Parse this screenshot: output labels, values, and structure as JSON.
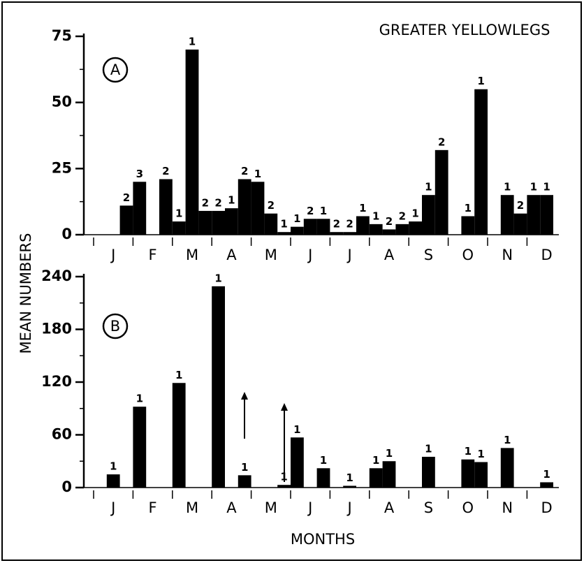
{
  "chart_data": [
    {
      "type": "bar",
      "title": "GREATER YELLOWLEGS",
      "panel": "A",
      "ylabel": "MEAN NUMBERS",
      "color": "#000000",
      "categories": [
        null,
        "J",
        null,
        null,
        "F",
        null,
        null,
        "M",
        null,
        null,
        "A",
        null,
        null,
        "M",
        null,
        null,
        "J",
        null,
        null,
        "J",
        null,
        null,
        "A",
        null,
        null,
        "S",
        null,
        null,
        "O",
        null,
        null,
        "N",
        null,
        null,
        "D",
        null
      ],
      "values": [
        null,
        null,
        11,
        20,
        null,
        21,
        5,
        70,
        9,
        9,
        10,
        21,
        20,
        8,
        1,
        3,
        6,
        6,
        1,
        1,
        7,
        4,
        2,
        4,
        5,
        15,
        32,
        null,
        7,
        55,
        null,
        15,
        8,
        15,
        15,
        null
      ],
      "sample_sizes": [
        null,
        null,
        2,
        3,
        null,
        2,
        1,
        1,
        2,
        2,
        1,
        2,
        1,
        2,
        1,
        1,
        2,
        1,
        2,
        2,
        1,
        1,
        2,
        2,
        1,
        1,
        2,
        null,
        1,
        1,
        null,
        1,
        2,
        1,
        1,
        null
      ],
      "ylim": [
        0,
        75
      ],
      "yticks": [
        0,
        25,
        50,
        75
      ],
      "yticks_minor": [
        12.5,
        37.5,
        62.5
      ]
    },
    {
      "type": "bar",
      "panel": "B",
      "xlabel": "MONTHS",
      "color": "#000000",
      "categories": [
        null,
        "J",
        null,
        null,
        "F",
        null,
        null,
        "M",
        null,
        null,
        "A",
        null,
        null,
        "M",
        null,
        null,
        "J",
        null,
        null,
        "J",
        null,
        null,
        "A",
        null,
        null,
        "S",
        null,
        null,
        "O",
        null,
        null,
        "N",
        null,
        null,
        "D",
        null
      ],
      "values": [
        null,
        15,
        null,
        92,
        null,
        null,
        119,
        null,
        null,
        229,
        null,
        14,
        null,
        null,
        3,
        57,
        null,
        22,
        null,
        2,
        null,
        22,
        30,
        null,
        null,
        35,
        null,
        null,
        32,
        29,
        null,
        45,
        null,
        null,
        6,
        null
      ],
      "sample_sizes": [
        null,
        1,
        null,
        1,
        null,
        null,
        1,
        null,
        null,
        1,
        null,
        1,
        null,
        null,
        1,
        1,
        null,
        1,
        null,
        1,
        null,
        1,
        1,
        null,
        null,
        1,
        null,
        null,
        1,
        1,
        null,
        1,
        null,
        null,
        1,
        null
      ],
      "ylim": [
        0,
        240
      ],
      "yticks": [
        0,
        60,
        120,
        180,
        240
      ],
      "yticks_minor": [
        30,
        90,
        150,
        210
      ]
    }
  ]
}
